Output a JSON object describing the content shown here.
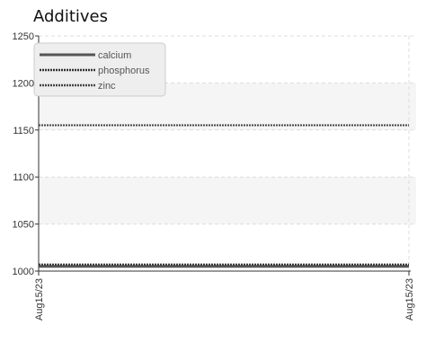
{
  "chart_data": {
    "type": "line",
    "title": "Additives",
    "xlabel": "",
    "ylabel": "",
    "x": [
      "Aug15/23",
      "Aug15/23"
    ],
    "ylim": [
      1000,
      1250
    ],
    "yticks": [
      1000,
      1050,
      1100,
      1150,
      1200,
      1250
    ],
    "ytick_labels": [
      "1000",
      "1050",
      "1100",
      "1150",
      "1200",
      "1250"
    ],
    "grid": true,
    "legend_position": "top-left",
    "series": [
      {
        "name": "calcium",
        "values": [
          1005,
          1005
        ],
        "color": "#555555",
        "style": "solid"
      },
      {
        "name": "phosphorus",
        "values": [
          1007,
          1007
        ],
        "color": "#333333",
        "style": "dotted"
      },
      {
        "name": "zinc",
        "values": [
          1155,
          1155
        ],
        "color": "#444444",
        "style": "dotted"
      }
    ]
  }
}
